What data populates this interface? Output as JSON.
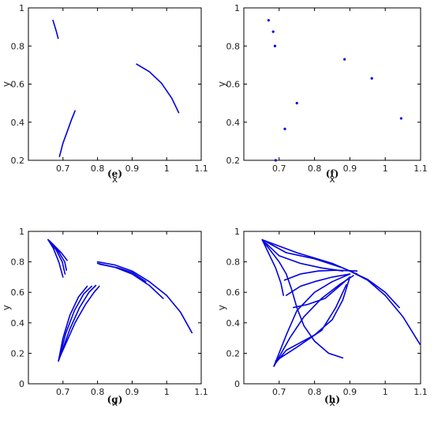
{
  "chart_data": [
    {
      "id": "e",
      "panel_label": "(e)",
      "type": "line",
      "xlabel": "x",
      "ylabel": "y",
      "xlim": [
        0.6,
        1.1
      ],
      "ylim": [
        0.2,
        1.0
      ],
      "xticks": [
        "0.7",
        "0.8",
        "0.9",
        "1",
        "1.1"
      ],
      "yticks": [
        "0.2",
        "0.4",
        "0.6",
        "0.8",
        "1"
      ],
      "series": [
        {
          "points": [
            [
              0.671,
              0.935
            ],
            [
              0.676,
              0.905
            ],
            [
              0.681,
              0.875
            ],
            [
              0.686,
              0.84
            ]
          ]
        },
        {
          "points": [
            [
              0.69,
              0.22
            ],
            [
              0.7,
              0.29
            ],
            [
              0.712,
              0.35
            ],
            [
              0.724,
              0.41
            ],
            [
              0.735,
              0.46
            ]
          ]
        },
        {
          "points": [
            [
              0.913,
              0.705
            ],
            [
              0.95,
              0.665
            ],
            [
              0.985,
              0.605
            ],
            [
              1.015,
              0.525
            ],
            [
              1.035,
              0.45
            ]
          ]
        }
      ]
    },
    {
      "id": "f",
      "panel_label": "(f)",
      "type": "scatter",
      "xlabel": "x",
      "ylabel": "y",
      "xlim": [
        0.6,
        1.1
      ],
      "ylim": [
        0.2,
        1.0
      ],
      "xticks": [
        "0.7",
        "0.8",
        "0.9",
        "1",
        "1.1"
      ],
      "yticks": [
        "0.2",
        "0.4",
        "0.6",
        "0.8",
        "1"
      ],
      "points": [
        [
          0.67,
          0.935
        ],
        [
          0.683,
          0.875
        ],
        [
          0.688,
          0.8
        ],
        [
          0.885,
          0.73
        ],
        [
          0.962,
          0.63
        ],
        [
          1.045,
          0.42
        ],
        [
          0.75,
          0.5
        ],
        [
          0.716,
          0.365
        ],
        [
          0.69,
          0.2
        ]
      ]
    },
    {
      "id": "g",
      "panel_label": "(g)",
      "type": "line",
      "xlabel": "x",
      "ylabel": "y",
      "xlim": [
        0.6,
        1.1
      ],
      "ylim": [
        0.0,
        1.0
      ],
      "xticks": [
        "0.7",
        "0.8",
        "0.9",
        "1",
        "1.1"
      ],
      "yticks": [
        "0",
        "0.2",
        "0.4",
        "0.6",
        "0.8",
        "1"
      ],
      "series": [
        {
          "points": [
            [
              0.657,
              0.945
            ],
            [
              0.672,
              0.89
            ],
            [
              0.688,
              0.8
            ],
            [
              0.7,
              0.7
            ]
          ]
        },
        {
          "points": [
            [
              0.657,
              0.945
            ],
            [
              0.68,
              0.88
            ],
            [
              0.698,
              0.8
            ],
            [
              0.706,
              0.72
            ]
          ]
        },
        {
          "points": [
            [
              0.657,
              0.945
            ],
            [
              0.688,
              0.865
            ],
            [
              0.705,
              0.8
            ],
            [
              0.71,
              0.745
            ]
          ]
        },
        {
          "points": [
            [
              0.66,
              0.94
            ],
            [
              0.695,
              0.86
            ],
            [
              0.712,
              0.81
            ]
          ]
        },
        {
          "points": [
            [
              0.687,
              0.15
            ],
            [
              0.7,
              0.3
            ],
            [
              0.72,
              0.45
            ],
            [
              0.745,
              0.57
            ],
            [
              0.77,
              0.64
            ]
          ]
        },
        {
          "points": [
            [
              0.687,
              0.15
            ],
            [
              0.708,
              0.33
            ],
            [
              0.733,
              0.48
            ],
            [
              0.76,
              0.59
            ],
            [
              0.783,
              0.64
            ]
          ]
        },
        {
          "points": [
            [
              0.687,
              0.15
            ],
            [
              0.72,
              0.36
            ],
            [
              0.748,
              0.5
            ],
            [
              0.775,
              0.6
            ],
            [
              0.795,
              0.645
            ]
          ]
        },
        {
          "points": [
            [
              0.69,
              0.17
            ],
            [
              0.735,
              0.4
            ],
            [
              0.765,
              0.52
            ],
            [
              0.79,
              0.6
            ],
            [
              0.805,
              0.64
            ]
          ]
        },
        {
          "points": [
            [
              0.8,
              0.8
            ],
            [
              0.85,
              0.78
            ],
            [
              0.9,
              0.74
            ],
            [
              0.95,
              0.67
            ],
            [
              1.0,
              0.58
            ],
            [
              1.04,
              0.47
            ],
            [
              1.073,
              0.335
            ]
          ]
        },
        {
          "points": [
            [
              0.8,
              0.79
            ],
            [
              0.85,
              0.765
            ],
            [
              0.9,
              0.72
            ],
            [
              0.95,
              0.645
            ],
            [
              0.99,
              0.56
            ]
          ]
        },
        {
          "points": [
            [
              0.805,
              0.785
            ],
            [
              0.86,
              0.76
            ],
            [
              0.9,
              0.73
            ],
            [
              0.94,
              0.67
            ]
          ]
        }
      ]
    },
    {
      "id": "h",
      "panel_label": "(h)",
      "type": "line",
      "xlabel": "x",
      "ylabel": "y",
      "xlim": [
        0.6,
        1.1
      ],
      "ylim": [
        0.0,
        1.0
      ],
      "xticks": [
        "0.7",
        "0.8",
        "0.9",
        "1",
        "1.1"
      ],
      "yticks": [
        "0",
        "0.2",
        "0.4",
        "0.6",
        "0.8",
        "1"
      ],
      "series": [
        {
          "points": [
            [
              0.652,
              0.945
            ],
            [
              0.75,
              0.86
            ],
            [
              0.85,
              0.79
            ],
            [
              0.9,
              0.74
            ],
            [
              0.95,
              0.68
            ],
            [
              1.0,
              0.58
            ],
            [
              1.05,
              0.44
            ],
            [
              1.098,
              0.26
            ]
          ]
        },
        {
          "points": [
            [
              0.652,
              0.945
            ],
            [
              0.7,
              0.8
            ],
            [
              0.72,
              0.72
            ],
            [
              0.735,
              0.62
            ],
            [
              0.75,
              0.5
            ],
            [
              0.77,
              0.38
            ],
            [
              0.8,
              0.28
            ],
            [
              0.84,
              0.2
            ],
            [
              0.88,
              0.17
            ]
          ]
        },
        {
          "points": [
            [
              0.652,
              0.945
            ],
            [
              0.69,
              0.76
            ],
            [
              0.705,
              0.66
            ],
            [
              0.712,
              0.58
            ]
          ]
        },
        {
          "points": [
            [
              0.652,
              0.945
            ],
            [
              0.7,
              0.84
            ],
            [
              0.76,
              0.79
            ],
            [
              0.82,
              0.76
            ],
            [
              0.88,
              0.74
            ]
          ]
        },
        {
          "points": [
            [
              0.665,
              0.93
            ],
            [
              0.72,
              0.86
            ],
            [
              0.8,
              0.82
            ],
            [
              0.88,
              0.76
            ],
            [
              0.92,
              0.72
            ]
          ]
        },
        {
          "points": [
            [
              0.685,
              0.115
            ],
            [
              0.72,
              0.32
            ],
            [
              0.75,
              0.48
            ],
            [
              0.8,
              0.6
            ],
            [
              0.85,
              0.67
            ],
            [
              0.9,
              0.72
            ]
          ]
        },
        {
          "points": [
            [
              0.685,
              0.115
            ],
            [
              0.73,
              0.3
            ],
            [
              0.77,
              0.44
            ],
            [
              0.82,
              0.56
            ],
            [
              0.87,
              0.65
            ],
            [
              0.91,
              0.71
            ]
          ]
        },
        {
          "points": [
            [
              0.688,
              0.13
            ],
            [
              0.72,
              0.22
            ],
            [
              0.8,
              0.32
            ],
            [
              0.85,
              0.42
            ],
            [
              0.88,
              0.55
            ],
            [
              0.9,
              0.7
            ]
          ]
        },
        {
          "points": [
            [
              0.69,
              0.15
            ],
            [
              0.75,
              0.24
            ],
            [
              0.82,
              0.35
            ],
            [
              0.86,
              0.5
            ],
            [
              0.89,
              0.65
            ]
          ]
        },
        {
          "points": [
            [
              0.74,
              0.5
            ],
            [
              0.78,
              0.52
            ],
            [
              0.83,
              0.56
            ],
            [
              0.87,
              0.64
            ],
            [
              0.9,
              0.7
            ]
          ]
        },
        {
          "points": [
            [
              0.72,
              0.58
            ],
            [
              0.76,
              0.64
            ],
            [
              0.8,
              0.67
            ],
            [
              0.85,
              0.7
            ],
            [
              0.9,
              0.72
            ]
          ]
        },
        {
          "points": [
            [
              0.715,
              0.68
            ],
            [
              0.76,
              0.72
            ],
            [
              0.81,
              0.74
            ],
            [
              0.86,
              0.745
            ],
            [
              0.92,
              0.74
            ]
          ]
        },
        {
          "points": [
            [
              0.9,
              0.74
            ],
            [
              0.95,
              0.685
            ],
            [
              1.0,
              0.6
            ],
            [
              1.04,
              0.5
            ]
          ]
        }
      ]
    }
  ]
}
